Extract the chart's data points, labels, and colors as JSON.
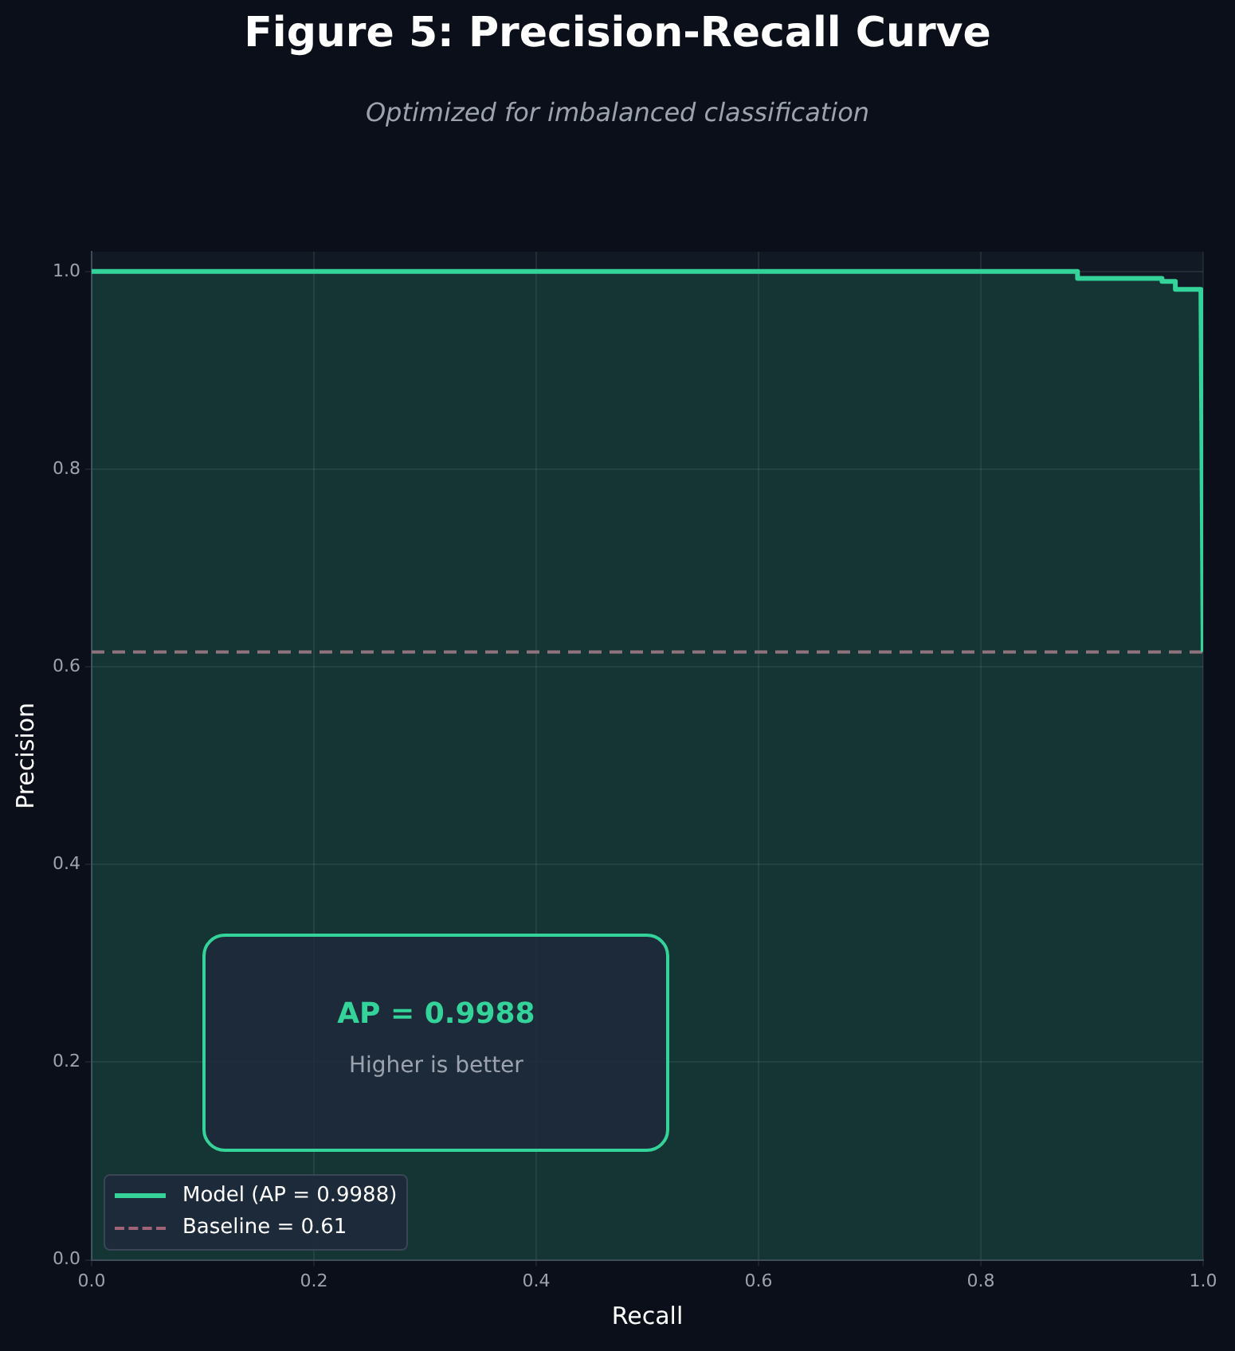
{
  "chart_data": {
    "type": "line",
    "title": "Figure 5: Precision-Recall Curve",
    "subtitle": "Optimized for imbalanced classification",
    "xlabel": "Recall",
    "ylabel": "Precision",
    "xlim": [
      0,
      1
    ],
    "xticks": [
      {
        "value": 0,
        "label": "0.0"
      },
      {
        "value": 0.2,
        "label": "0.2"
      },
      {
        "value": 0.4,
        "label": "0.4"
      },
      {
        "value": 0.6,
        "label": "0.6"
      },
      {
        "value": 0.8,
        "label": "0.8"
      },
      {
        "value": 1,
        "label": "1.0"
      }
    ],
    "ylim": [
      0,
      1.02
    ],
    "yticks": [
      {
        "value": 0,
        "label": "0.0"
      },
      {
        "value": 0.2,
        "label": "0.2"
      },
      {
        "value": 0.4,
        "label": "0.4"
      },
      {
        "value": 0.6,
        "label": "0.6"
      },
      {
        "value": 0.8,
        "label": "0.8"
      },
      {
        "value": 1,
        "label": "1.0"
      }
    ],
    "grid": true,
    "legend": "bottom left",
    "marker": "none",
    "series": [
      {
        "name": "Model (AP = 0.9988)",
        "type": "area",
        "color": "#34d399",
        "x": [
          0,
          0.887,
          0.887,
          0.963,
          0.963,
          0.975,
          0.975,
          0.998,
          1.0
        ],
        "values": [
          1.0,
          1.0,
          0.993,
          0.993,
          0.99,
          0.99,
          0.982,
          0.982,
          0.615
        ]
      },
      {
        "name": "Baseline = 0.61",
        "line_style": "dashed",
        "color": "#a06478",
        "x": [
          0,
          1
        ],
        "values": [
          0.615,
          0.615
        ]
      }
    ],
    "annotations": [
      "AP = 0.9988",
      "Higher is better"
    ]
  }
}
